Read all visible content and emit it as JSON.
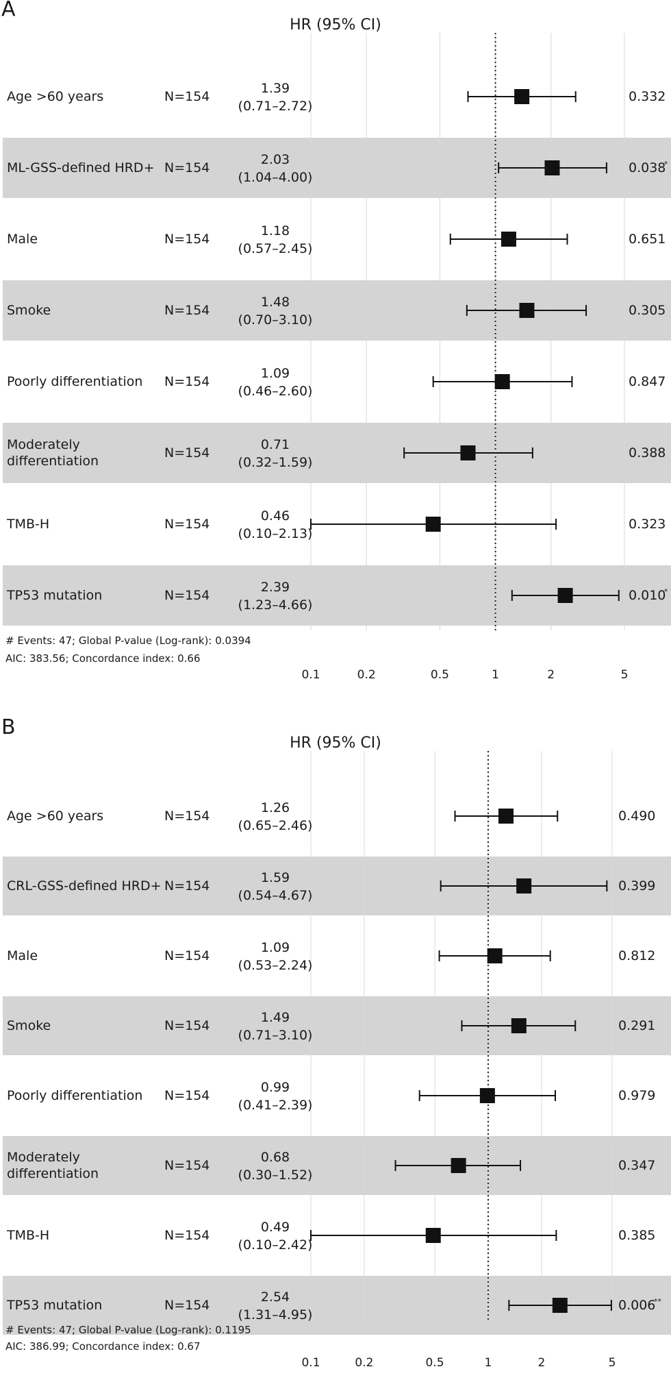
{
  "chart_data": [
    {
      "type": "forest",
      "panel_label": "A",
      "header": "HR (95% CI)",
      "xscale": "log",
      "ticks": [
        0.1,
        0.2,
        0.5,
        1,
        2,
        5
      ],
      "tick_labels": [
        "0.1",
        "0.2",
        "0.5",
        "1",
        "2",
        "5"
      ],
      "reference_line": 1,
      "rows": [
        {
          "label": "Age >60 years",
          "n": "N=154",
          "hr_text": "1.39",
          "ci_text": "(0.71–2.72)",
          "hr": 1.39,
          "lo": 0.71,
          "hi": 2.72,
          "p": "0.332",
          "sig": "",
          "shaded": false
        },
        {
          "label": "ML-GSS-defined HRD+",
          "n": "N=154",
          "hr_text": "2.03",
          "ci_text": "(1.04–4.00)",
          "hr": 2.03,
          "lo": 1.04,
          "hi": 4.0,
          "p": "0.038",
          "sig": "*",
          "shaded": true
        },
        {
          "label": "Male",
          "n": "N=154",
          "hr_text": "1.18",
          "ci_text": "(0.57–2.45)",
          "hr": 1.18,
          "lo": 0.57,
          "hi": 2.45,
          "p": "0.651",
          "sig": "",
          "shaded": false
        },
        {
          "label": "Smoke",
          "n": "N=154",
          "hr_text": "1.48",
          "ci_text": "(0.70–3.10)",
          "hr": 1.48,
          "lo": 0.7,
          "hi": 3.1,
          "p": "0.305",
          "sig": "",
          "shaded": true
        },
        {
          "label": "Poorly differentiation",
          "n": "N=154",
          "hr_text": "1.09",
          "ci_text": "(0.46–2.60)",
          "hr": 1.09,
          "lo": 0.46,
          "hi": 2.6,
          "p": "0.847",
          "sig": "",
          "shaded": false
        },
        {
          "label": "Moderately\ndifferentiation",
          "n": "N=154",
          "hr_text": "0.71",
          "ci_text": "(0.32–1.59)",
          "hr": 0.71,
          "lo": 0.32,
          "hi": 1.59,
          "p": "0.388",
          "sig": "",
          "shaded": true
        },
        {
          "label": "TMB-H",
          "n": "N=154",
          "hr_text": "0.46",
          "ci_text": "(0.10–2.13)",
          "hr": 0.46,
          "lo": 0.1,
          "hi": 2.13,
          "p": "0.323",
          "sig": "",
          "shaded": false
        },
        {
          "label": "TP53 mutation",
          "n": "N=154",
          "hr_text": "2.39",
          "ci_text": "(1.23–4.66)",
          "hr": 2.39,
          "lo": 1.23,
          "hi": 4.66,
          "p": "0.010",
          "sig": "*",
          "shaded": true
        }
      ],
      "footer_line1": "# Events: 47; Global P-value (Log-rank): 0.0394",
      "footer_line2": "AIC: 383.56; Concordance index: 0.66"
    },
    {
      "type": "forest",
      "panel_label": "B",
      "header": "HR (95% CI)",
      "xscale": "log",
      "ticks": [
        0.1,
        0.2,
        0.5,
        1,
        2,
        5
      ],
      "tick_labels": [
        "0.1",
        "0.2",
        "0.5",
        "1",
        "2",
        "5"
      ],
      "reference_line": 1,
      "rows": [
        {
          "label": "Age >60 years",
          "n": "N=154",
          "hr_text": "1.26",
          "ci_text": "(0.65–2.46)",
          "hr": 1.26,
          "lo": 0.65,
          "hi": 2.46,
          "p": "0.490",
          "sig": "",
          "shaded": false
        },
        {
          "label": "CRL-GSS-defined HRD+",
          "n": "N=154",
          "hr_text": "1.59",
          "ci_text": "(0.54–4.67)",
          "hr": 1.59,
          "lo": 0.54,
          "hi": 4.67,
          "p": "0.399",
          "sig": "",
          "shaded": true
        },
        {
          "label": "Male",
          "n": "N=154",
          "hr_text": "1.09",
          "ci_text": "(0.53–2.24)",
          "hr": 1.09,
          "lo": 0.53,
          "hi": 2.24,
          "p": "0.812",
          "sig": "",
          "shaded": false
        },
        {
          "label": "Smoke",
          "n": "N=154",
          "hr_text": "1.49",
          "ci_text": "(0.71–3.10)",
          "hr": 1.49,
          "lo": 0.71,
          "hi": 3.1,
          "p": "0.291",
          "sig": "",
          "shaded": true
        },
        {
          "label": "Poorly differentiation",
          "n": "N=154",
          "hr_text": "0.99",
          "ci_text": "(0.41–2.39)",
          "hr": 0.99,
          "lo": 0.41,
          "hi": 2.39,
          "p": "0.979",
          "sig": "",
          "shaded": false
        },
        {
          "label": "Moderately\ndifferentiation",
          "n": "N=154",
          "hr_text": "0.68",
          "ci_text": "(0.30–1.52)",
          "hr": 0.68,
          "lo": 0.3,
          "hi": 1.52,
          "p": "0.347",
          "sig": "",
          "shaded": true
        },
        {
          "label": "TMB-H",
          "n": "N=154",
          "hr_text": "0.49",
          "ci_text": "(0.10–2.42)",
          "hr": 0.49,
          "lo": 0.1,
          "hi": 2.42,
          "p": "0.385",
          "sig": "",
          "shaded": false
        },
        {
          "label": "TP53 mutation",
          "n": "N=154",
          "hr_text": "2.54",
          "ci_text": "(1.31–4.95)",
          "hr": 2.54,
          "lo": 1.31,
          "hi": 4.95,
          "p": "0.006",
          "sig": "**",
          "shaded": true
        }
      ],
      "footer_line1": "# Events: 47; Global P-value (Log-rank): 0.1195",
      "footer_line2": "AIC: 386.99; Concordance index: 0.67"
    }
  ]
}
